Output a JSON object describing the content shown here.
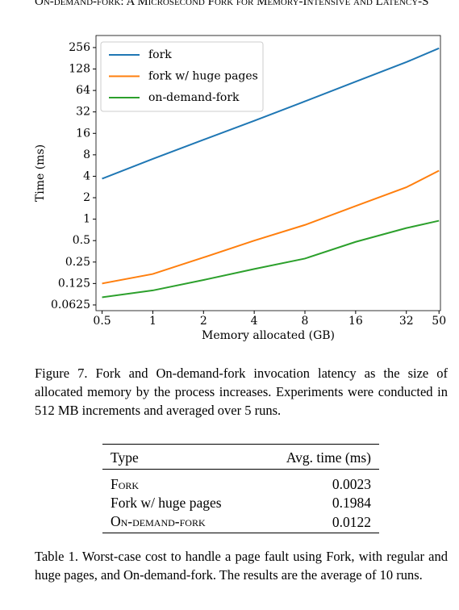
{
  "header": {
    "title": "On-demand-fork: A Microsecond Fork for Memory-Intensive and Latency-S"
  },
  "chart_data": {
    "type": "line",
    "x_label": "Memory allocated (GB)",
    "y_label": "Time (ms)",
    "x": [
      0.5,
      1,
      2,
      4,
      8,
      16,
      32,
      50
    ],
    "series": [
      {
        "name": "fork",
        "color": "#1f77b4",
        "values": [
          3.7,
          7,
          13,
          24,
          45,
          85,
          160,
          250
        ]
      },
      {
        "name": "fork w/ huge pages",
        "color": "#ff7f0e",
        "values": [
          0.125,
          0.17,
          0.29,
          0.5,
          0.83,
          1.53,
          2.8,
          4.8
        ]
      },
      {
        "name": "on-demand-fork",
        "color": "#2ca02c",
        "values": [
          0.08,
          0.1,
          0.14,
          0.2,
          0.28,
          0.48,
          0.75,
          0.95
        ]
      }
    ],
    "xlim": [
      0.46,
      51
    ],
    "ylim": [
      0.052,
      378
    ],
    "xscale": "log",
    "yscale": "log",
    "xticks": [
      0.5,
      1,
      2,
      4,
      8,
      16,
      32,
      50
    ],
    "yticks": [
      0.0625,
      0.125,
      0.25,
      0.5,
      1,
      2,
      4,
      8,
      16,
      32,
      64,
      128,
      256
    ],
    "legend": "upper left"
  },
  "figure_caption": "Figure 7. Fork and On-demand-fork invocation latency as the size of allocated memory by the process increases. Experiments were conducted in 512 MB increments and averaged over 5 runs.",
  "table": {
    "header": [
      "Type",
      "Avg. time (ms)"
    ],
    "rows": [
      [
        "Fork",
        "0.0023"
      ],
      [
        "Fork w/ huge pages",
        "0.1984"
      ],
      [
        "On-demand-fork",
        "0.0122"
      ]
    ]
  },
  "table_caption": "Table 1. Worst-case cost to handle a page fault using Fork, with regular and huge pages, and On-demand-fork. The results are the average of 10 runs."
}
